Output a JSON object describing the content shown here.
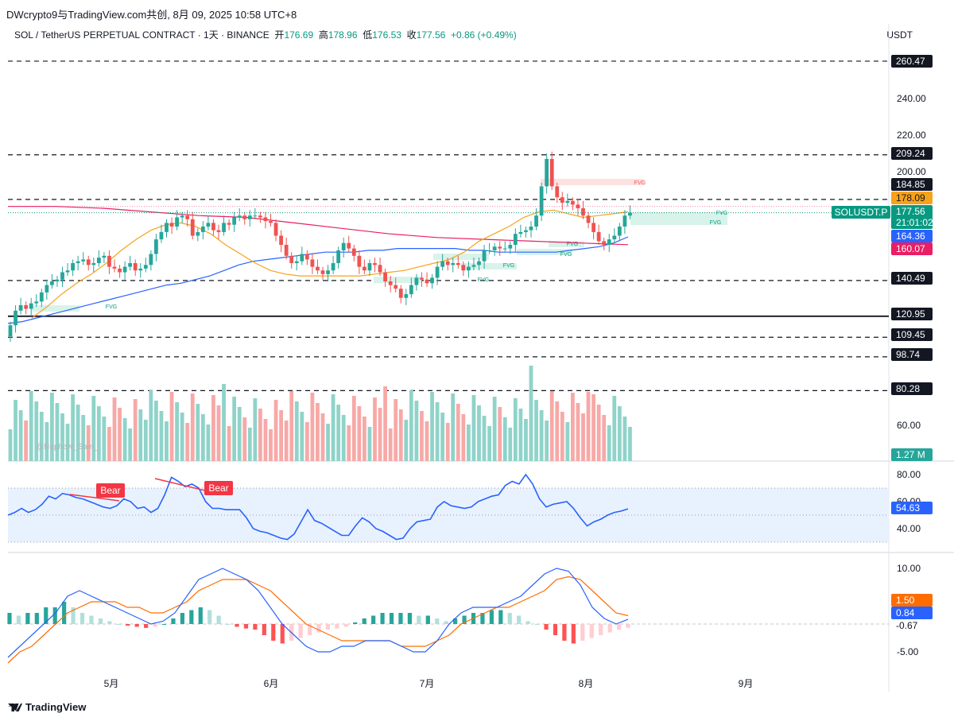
{
  "header": {
    "share_text": "DWcrypto9与TradingView.com共创, 8月 09, 2025 10:58 UTC+8",
    "symbol_line": "SOL / TetherUS PERPETUAL CONTRACT · 1天 · BINANCE",
    "ohlc": [
      {
        "label": "开",
        "value": "176.69"
      },
      {
        "label": "高",
        "value": "178.96"
      },
      {
        "label": "低",
        "value": "176.53"
      },
      {
        "label": "收",
        "value": "177.56"
      }
    ],
    "change": "+0.86 (+0.49%)",
    "currency": "USDT"
  },
  "footer": {
    "brand": "TradingView"
  },
  "colors": {
    "up": "#26a69a",
    "down": "#ef5350",
    "ma_fast": "#f7a21b",
    "ma_mid": "#2962ff",
    "ma_slow": "#e91e63",
    "rsi": "#2962ff",
    "macd": "#2962ff",
    "signal": "#ff6d00"
  },
  "chart_data": [
    {
      "type": "candlestick",
      "title": "SOL / TetherUS PERPETUAL CONTRACT",
      "timeframe": "1天",
      "x_labels": [
        "5月",
        "6月",
        "7月",
        "8月",
        "9月"
      ],
      "y_ticks": [
        60,
        200,
        220,
        240
      ],
      "ylim": [
        54,
        268
      ],
      "price_closes": [
        116,
        124,
        127,
        125,
        128,
        129,
        134,
        138,
        140,
        141,
        145,
        146,
        150,
        151,
        152,
        149,
        150,
        153,
        154,
        148,
        147,
        145,
        148,
        150,
        146,
        147,
        149,
        155,
        163,
        167,
        172,
        170,
        175,
        176,
        174,
        165,
        167,
        170,
        172,
        168,
        167,
        172,
        171,
        175,
        176,
        174,
        176,
        176,
        175,
        173,
        172,
        165,
        160,
        154,
        150,
        151,
        155,
        152,
        148,
        146,
        144,
        146,
        150,
        157,
        161,
        158,
        154,
        148,
        146,
        150,
        149,
        145,
        140,
        138,
        136,
        131,
        133,
        138,
        142,
        141,
        139,
        142,
        148,
        151,
        149,
        150,
        149,
        146,
        148,
        149,
        151,
        157,
        157,
        159,
        158,
        158,
        160,
        166,
        167,
        168,
        170,
        176,
        192,
        207,
        192,
        186,
        183,
        184,
        182,
        180,
        176,
        172,
        167,
        162,
        160,
        163,
        165,
        170,
        176,
        177.56
      ],
      "ma_slow_start": 181,
      "ma_slow_end": 160.07,
      "ma_mid_values": [
        117,
        118,
        120,
        122,
        124,
        126,
        128,
        130,
        132,
        134,
        136,
        138,
        139,
        141,
        143,
        146,
        149,
        151,
        152,
        153,
        154,
        155,
        156,
        156,
        156,
        157,
        157,
        158,
        158,
        158,
        158,
        158,
        157,
        157,
        156,
        156,
        156,
        156,
        156,
        157,
        158,
        159,
        161,
        164.36
      ],
      "ma_fast_values": [
        120,
        126,
        133,
        139,
        144,
        150,
        157,
        163,
        168,
        171,
        172,
        170,
        166,
        160,
        155,
        150,
        146,
        144,
        143,
        143,
        143,
        143,
        143,
        144,
        145,
        146,
        148,
        150,
        152,
        156,
        162,
        166,
        170,
        175,
        178,
        179,
        177,
        175,
        176,
        177,
        178.09
      ],
      "levels": [
        {
          "value": 260.47,
          "style": "dashed"
        },
        {
          "value": 209.24,
          "style": "dashed"
        },
        {
          "value": 184.85,
          "style": "dashed"
        },
        {
          "value": 140.49,
          "style": "dashed"
        },
        {
          "value": 120.95,
          "style": "solid"
        },
        {
          "value": 109.45,
          "style": "dashed"
        },
        {
          "value": 98.74,
          "style": "dashed"
        },
        {
          "value": 80.28,
          "style": "dashed"
        }
      ],
      "price_labels": [
        {
          "text": "260.47",
          "bg": "#131722",
          "fg": "#ffffff"
        },
        {
          "text": "209.24",
          "bg": "#131722",
          "fg": "#ffffff"
        },
        {
          "text": "184.85",
          "bg": "#131722",
          "fg": "#ffffff"
        },
        {
          "text": "178.09",
          "bg": "#f7a21b",
          "fg": "#131722"
        },
        {
          "text": "177.56",
          "bg": "#089981",
          "fg": "#ffffff"
        },
        {
          "text": "21:01:02",
          "bg": "#089981",
          "fg": "#ffffff"
        },
        {
          "text": "164.36",
          "bg": "#2962ff",
          "fg": "#ffffff"
        },
        {
          "text": "160.07",
          "bg": "#e91e63",
          "fg": "#ffffff"
        },
        {
          "text": "140.49",
          "bg": "#131722",
          "fg": "#ffffff"
        },
        {
          "text": "120.95",
          "bg": "#131722",
          "fg": "#ffffff"
        },
        {
          "text": "109.45",
          "bg": "#131722",
          "fg": "#ffffff"
        },
        {
          "text": "98.74",
          "bg": "#131722",
          "fg": "#ffffff"
        },
        {
          "text": "80.28",
          "bg": "#131722",
          "fg": "#ffffff"
        },
        {
          "text": "1.27 M",
          "bg": "#26a69a",
          "fg": "#ffffff"
        }
      ],
      "symbol_tag": "SOLUSDT.P",
      "fvg_labels": [
        "FVG",
        "FVG",
        "FVG",
        "FVG",
        "FVG",
        "FVG",
        "FVG",
        "FVG"
      ],
      "watermark": "@Nephew_Sam_"
    },
    {
      "type": "line",
      "name": "RSI",
      "y_ticks": [
        80,
        60,
        40
      ],
      "band": [
        30,
        70
      ],
      "values": [
        50,
        52,
        55,
        52,
        54,
        58,
        64,
        62,
        66,
        65,
        63,
        62,
        60,
        58,
        56,
        55,
        57,
        62,
        60,
        55,
        56,
        52,
        55,
        65,
        78,
        75,
        71,
        73,
        70,
        60,
        55,
        55,
        54,
        54,
        54,
        48,
        40,
        38,
        37,
        35,
        33,
        32,
        36,
        45,
        54,
        46,
        44,
        41,
        38,
        35,
        35,
        42,
        48,
        45,
        40,
        38,
        35,
        32,
        33,
        40,
        45,
        46,
        47,
        56,
        60,
        57,
        56,
        55,
        56,
        60,
        62,
        64,
        65,
        72,
        75,
        73,
        80,
        73,
        62,
        56,
        58,
        59,
        60,
        55,
        48,
        42,
        45,
        47,
        50,
        52,
        53,
        54.63
      ],
      "last_value": "54.63",
      "divergence_labels": [
        "Bear",
        "Bear"
      ]
    },
    {
      "type": "line",
      "name": "MACD",
      "y_ticks": [
        10,
        -5
      ],
      "macd_values": [
        -6,
        -4,
        -2,
        0,
        2,
        5,
        6,
        5,
        4,
        3,
        2,
        1,
        0,
        0.5,
        2,
        5,
        8,
        9,
        10,
        9,
        8,
        6,
        3,
        0,
        -2,
        -4,
        -5,
        -5,
        -4,
        -4,
        -3,
        -3,
        -3,
        -4,
        -5,
        -5,
        -3,
        0,
        2,
        3,
        3,
        3,
        4,
        5,
        7,
        9,
        10,
        9.5,
        7,
        3,
        1,
        0,
        0.84
      ],
      "signal_values": [
        -7,
        -5,
        -4,
        -2,
        0,
        2,
        3,
        4,
        4,
        4,
        3,
        3,
        2,
        2,
        3,
        4,
        6,
        7,
        8,
        8,
        8,
        7,
        6,
        4,
        2,
        0,
        -1,
        -2,
        -3,
        -3,
        -3,
        -3,
        -3,
        -4,
        -4,
        -4,
        -3,
        -2,
        0,
        1,
        2,
        3,
        3,
        4,
        5,
        6,
        8,
        8.5,
        8,
        6,
        4,
        2,
        1.5
      ],
      "histogram_values": [
        2,
        1.5,
        2,
        2,
        3,
        3,
        4,
        3,
        2,
        1.5,
        1,
        0.5,
        0,
        -0.3,
        -0.5,
        -0.7,
        -0.5,
        0,
        1,
        2,
        2.5,
        3,
        2.5,
        1.5,
        0,
        -0.5,
        -0.8,
        -1,
        -2,
        -3,
        -3.5,
        -3,
        -2.5,
        -2,
        -1.5,
        -1,
        -0.8,
        -0.5,
        0.3,
        1,
        1.5,
        2,
        2,
        2,
        2,
        1.5,
        1.5,
        1,
        0.5,
        1,
        1.5,
        2,
        2,
        2.5,
        2.5,
        2,
        1.5,
        0.5,
        0,
        -1,
        -2,
        -3,
        -3.5,
        -3,
        -2.5,
        -2,
        -1.5,
        -1,
        -0.67
      ],
      "labels": [
        "1.50",
        "0.84",
        "-0.67"
      ]
    }
  ]
}
